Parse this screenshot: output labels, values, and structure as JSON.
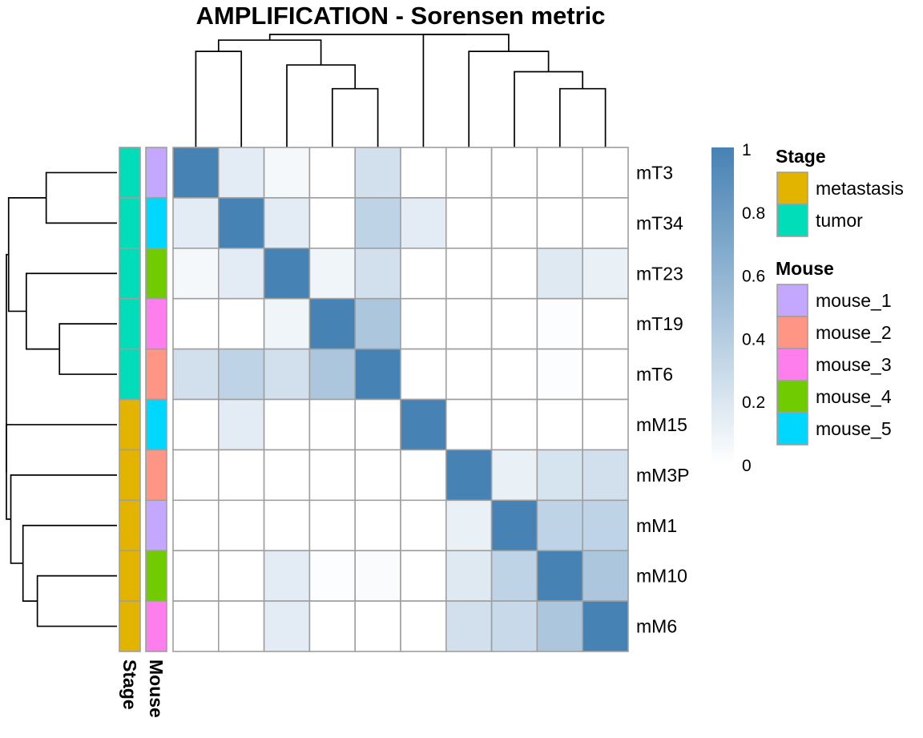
{
  "chart_data": {
    "type": "heatmap",
    "title": "AMPLIFICATION - Sorensen metric",
    "rows": [
      "mT3",
      "mT34",
      "mT23",
      "mT19",
      "mT6",
      "mM15",
      "mM3P",
      "mM1",
      "mM10",
      "mM6"
    ],
    "columns": [
      "mT3",
      "mT34",
      "mT23",
      "mT19",
      "mT6",
      "mM15",
      "mM3P",
      "mM1",
      "mM10",
      "mM6"
    ],
    "values": [
      [
        1.0,
        0.15,
        0.06,
        0.0,
        0.25,
        0.0,
        0.0,
        0.0,
        0.0,
        0.0
      ],
      [
        0.15,
        1.0,
        0.15,
        0.0,
        0.35,
        0.15,
        0.0,
        0.0,
        0.0,
        0.0
      ],
      [
        0.06,
        0.15,
        1.0,
        0.08,
        0.25,
        0.0,
        0.0,
        0.0,
        0.18,
        0.12
      ],
      [
        0.0,
        0.0,
        0.08,
        1.0,
        0.45,
        0.0,
        0.0,
        0.0,
        0.02,
        0.0
      ],
      [
        0.25,
        0.35,
        0.25,
        0.45,
        1.0,
        0.0,
        0.0,
        0.0,
        0.02,
        0.0
      ],
      [
        0.0,
        0.15,
        0.0,
        0.0,
        0.0,
        1.0,
        0.0,
        0.0,
        0.0,
        0.0
      ],
      [
        0.0,
        0.0,
        0.0,
        0.0,
        0.0,
        0.0,
        1.0,
        0.12,
        0.22,
        0.25
      ],
      [
        0.0,
        0.0,
        0.0,
        0.0,
        0.0,
        0.0,
        0.12,
        1.0,
        0.35,
        0.35
      ],
      [
        0.0,
        0.0,
        0.15,
        0.02,
        0.03,
        0.0,
        0.18,
        0.35,
        1.0,
        0.45
      ],
      [
        0.0,
        0.0,
        0.15,
        0.0,
        0.0,
        0.0,
        0.25,
        0.3,
        0.45,
        1.0
      ]
    ],
    "color_scale": {
      "low": "#ffffff",
      "high": "#4682b4",
      "min": 0,
      "max": 1,
      "ticks": [
        "0",
        "0.2",
        "0.4",
        "0.6",
        "0.8",
        "1"
      ]
    },
    "annotations": {
      "Stage": [
        "tumor",
        "tumor",
        "tumor",
        "tumor",
        "tumor",
        "metastasis",
        "metastasis",
        "metastasis",
        "metastasis",
        "metastasis"
      ],
      "Mouse": [
        "mouse_1",
        "mouse_5",
        "mouse_4",
        "mouse_3",
        "mouse_2",
        "mouse_5",
        "mouse_2",
        "mouse_1",
        "mouse_4",
        "mouse_3"
      ]
    },
    "annotation_labels": [
      "Stage",
      "Mouse"
    ],
    "legends": [
      {
        "title": "Stage",
        "items": [
          {
            "label": "metastasis",
            "color": "#e2b400"
          },
          {
            "label": "tumor",
            "color": "#00ddb8"
          }
        ]
      },
      {
        "title": "Mouse",
        "items": [
          {
            "label": "mouse_1",
            "color": "#c4a8ff"
          },
          {
            "label": "mouse_2",
            "color": "#ff9585"
          },
          {
            "label": "mouse_3",
            "color": "#ff7eee"
          },
          {
            "label": "mouse_4",
            "color": "#70cc00"
          },
          {
            "label": "mouse_5",
            "color": "#00d7ff"
          }
        ]
      }
    ],
    "row_dendrogram": {
      "merges": [
        [
          3,
          4
        ],
        [
          0,
          1
        ],
        [
          2,
          "A"
        ],
        [
          "B",
          "C"
        ],
        [
          8,
          9
        ],
        [
          7,
          "E"
        ],
        [
          6,
          "F"
        ],
        [
          5,
          "G"
        ],
        [
          "D",
          "H"
        ]
      ],
      "heights": [
        0.52,
        0.64,
        0.82,
        0.98,
        0.72,
        0.85,
        0.96,
        1.0,
        1.0
      ]
    },
    "col_dendrogram": {
      "merges": [
        [
          3,
          4
        ],
        [
          2,
          "A"
        ],
        [
          0,
          1
        ],
        [
          "C",
          "B"
        ],
        [
          8,
          9
        ],
        [
          7,
          "E"
        ],
        [
          6,
          "F"
        ],
        [
          5,
          "G"
        ],
        [
          "D",
          "H"
        ]
      ],
      "heights": [
        0.52,
        0.73,
        0.85,
        0.95,
        0.52,
        0.67,
        0.85,
        1.0,
        1.0
      ]
    },
    "grid": true,
    "legend_position": "right"
  }
}
